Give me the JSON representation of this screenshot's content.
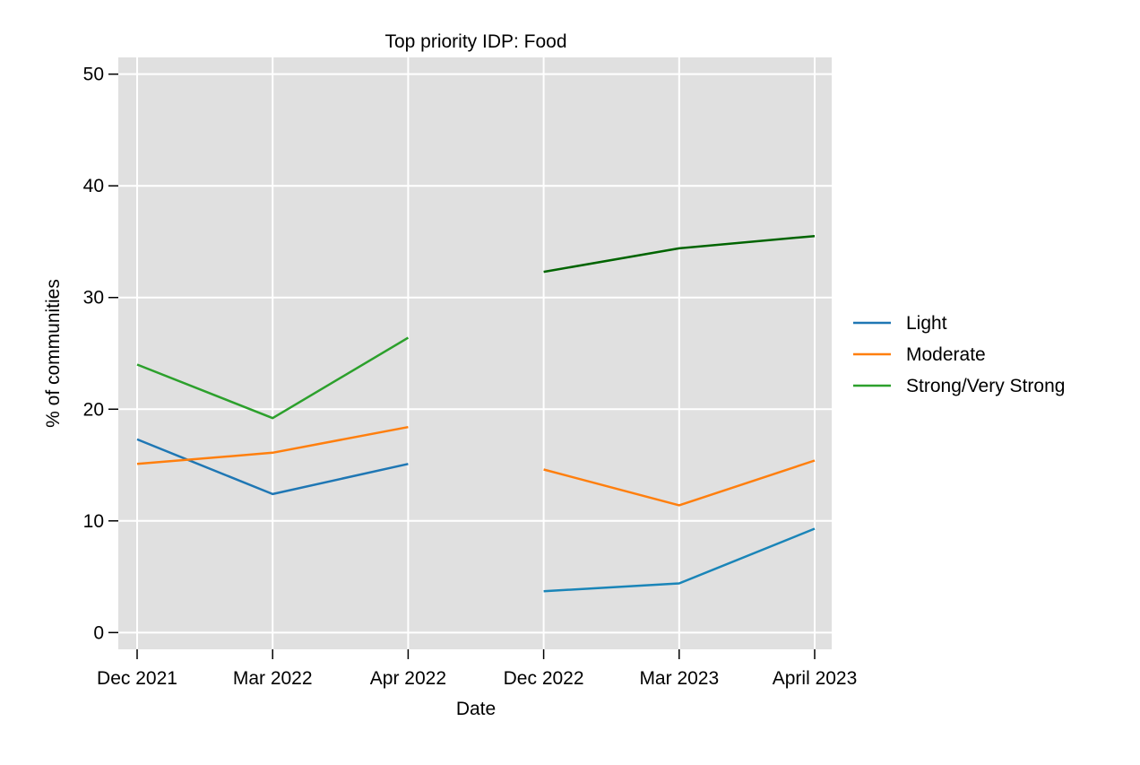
{
  "chart_data": {
    "type": "line",
    "title": "Top priority IDP: Food",
    "xlabel": "Date",
    "ylabel": "% of communities",
    "categories": [
      "Dec 2021",
      "Mar 2022",
      "Apr 2022",
      "Dec 2022",
      "Mar 2023",
      "April 2023"
    ],
    "ylim": [
      -1.5,
      51.5
    ],
    "yticks": [
      0,
      10,
      20,
      30,
      40,
      50
    ],
    "grid": true,
    "legend_position": "right",
    "series": [
      {
        "name": "Light",
        "color": "#1f77b4",
        "segments": [
          {
            "color": "#1f77b4",
            "points": [
              [
                0,
                17.3
              ],
              [
                1,
                12.4
              ],
              [
                2,
                15.1
              ]
            ]
          },
          {
            "color": "#1a85b8",
            "points": [
              [
                3,
                3.7
              ],
              [
                4,
                4.4
              ],
              [
                5,
                9.3
              ]
            ]
          }
        ]
      },
      {
        "name": "Moderate",
        "color": "#ff7f0e",
        "segments": [
          {
            "color": "#ff7f0e",
            "points": [
              [
                0,
                15.1
              ],
              [
                1,
                16.1
              ],
              [
                2,
                18.4
              ]
            ]
          },
          {
            "color": "#ff7f0e",
            "points": [
              [
                3,
                14.6
              ],
              [
                4,
                11.4
              ],
              [
                5,
                15.4
              ]
            ]
          }
        ]
      },
      {
        "name": "Strong/Very Strong",
        "color": "#2ca02c",
        "segments": [
          {
            "color": "#2ca02c",
            "points": [
              [
                0,
                24.0
              ],
              [
                1,
                19.2
              ],
              [
                2,
                26.4
              ]
            ]
          },
          {
            "color": "#006400",
            "points": [
              [
                3,
                32.3
              ],
              [
                4,
                34.4
              ],
              [
                5,
                35.5
              ]
            ]
          }
        ]
      }
    ]
  }
}
